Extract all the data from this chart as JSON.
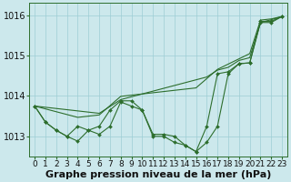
{
  "xlabel": "Graphe pression niveau de la mer (hPa)",
  "bg_color": "#cce8ec",
  "grid_color": "#9ecdd4",
  "line_color": "#2d6e2d",
  "marker_color": "#2d6e2d",
  "x_ticks": [
    0,
    1,
    2,
    3,
    4,
    5,
    6,
    7,
    8,
    9,
    10,
    11,
    12,
    13,
    14,
    15,
    16,
    17,
    18,
    19,
    20,
    21,
    22,
    23
  ],
  "ylim": [
    1012.5,
    1016.3
  ],
  "yticks": [
    1013,
    1014,
    1015,
    1016
  ],
  "series": [
    [
      1013.75,
      1013.35,
      1013.15,
      1013.0,
      1012.88,
      1013.15,
      1013.05,
      1013.25,
      1013.85,
      1013.75,
      1013.65,
      1013.05,
      1013.05,
      1013.0,
      1012.78,
      1012.62,
      1012.85,
      1013.25,
      1014.55,
      1014.8,
      1014.82,
      1015.85,
      1015.85,
      1015.97
    ],
    [
      1013.75,
      1013.35,
      1013.15,
      1013.0,
      1013.25,
      1013.15,
      1013.25,
      1013.65,
      1013.88,
      1013.88,
      1013.65,
      1013.0,
      1013.0,
      1012.85,
      1012.78,
      1012.62,
      1013.25,
      1014.55,
      1014.6,
      1014.8,
      1014.82,
      1015.82,
      1015.82,
      1015.97
    ],
    [
      1013.75,
      1013.72,
      1013.69,
      1013.66,
      1013.63,
      1013.6,
      1013.57,
      1013.74,
      1013.91,
      1013.98,
      1014.05,
      1014.12,
      1014.19,
      1014.26,
      1014.33,
      1014.4,
      1014.47,
      1014.64,
      1014.71,
      1014.88,
      1014.95,
      1015.82,
      1015.89,
      1015.97
    ],
    [
      1013.75,
      1013.68,
      1013.61,
      1013.54,
      1013.47,
      1013.5,
      1013.53,
      1013.76,
      1013.99,
      1014.02,
      1014.05,
      1014.08,
      1014.11,
      1014.14,
      1014.17,
      1014.2,
      1014.43,
      1014.66,
      1014.79,
      1014.92,
      1015.05,
      1015.88,
      1015.91,
      1015.97
    ]
  ],
  "xlabel_fontsize": 8,
  "tick_fontsize": 6.5
}
